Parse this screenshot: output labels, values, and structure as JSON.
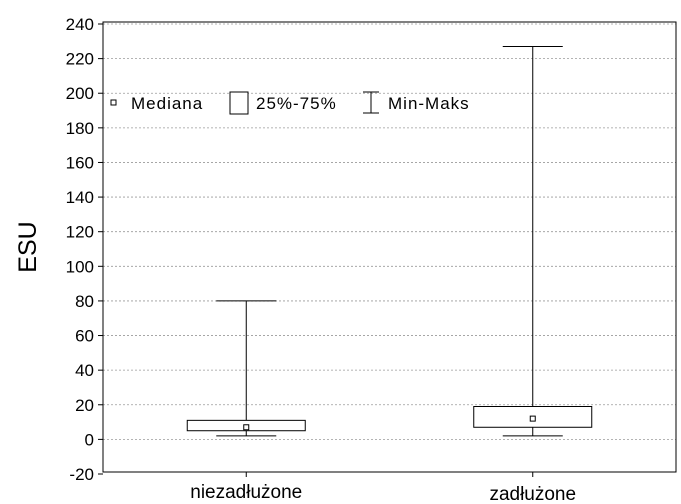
{
  "chart_data": {
    "type": "box",
    "ylabel": "ESU",
    "ylim": [
      -20,
      240
    ],
    "yticks": [
      -20,
      0,
      20,
      40,
      60,
      80,
      100,
      120,
      140,
      160,
      180,
      200,
      220,
      240
    ],
    "grid": true,
    "legend_position": "top-left",
    "legend": {
      "median": "Mediana",
      "box": "25%-75%",
      "whisker": "Min-Maks"
    },
    "categories": [
      "niezadłużone",
      "zadłużone"
    ],
    "series": [
      {
        "category": "niezadłużone",
        "min": 2,
        "q1": 5,
        "median": 7,
        "q3": 11,
        "max": 80
      },
      {
        "category": "zadłużone",
        "min": 2,
        "q1": 7,
        "median": 12,
        "q3": 19,
        "max": 227
      }
    ]
  }
}
